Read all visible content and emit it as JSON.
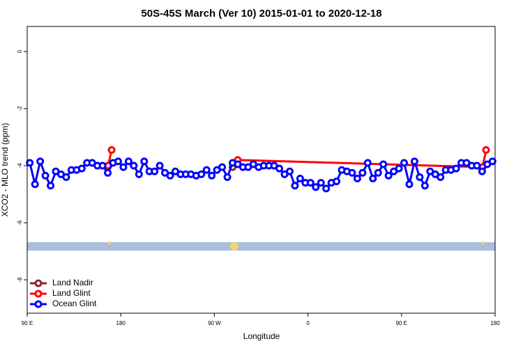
{
  "chart_data": {
    "type": "line",
    "title": "50S-45S March (Ver 10)   2015-01-01 to 2020-12-18",
    "xlabel": "Longitude",
    "ylabel": "XCO2 - MLO trend (ppm)",
    "xlim": [
      90,
      540
    ],
    "xticks": [
      {
        "value": 90,
        "label": "90 E"
      },
      {
        "value": 180,
        "label": "180"
      },
      {
        "value": 270,
        "label": "90 W"
      },
      {
        "value": 360,
        "label": "0"
      },
      {
        "value": 450,
        "label": "90 E"
      },
      {
        "value": 540,
        "label": "180"
      }
    ],
    "ylim": [
      -9.17,
      0.88
    ],
    "yticks": [
      0,
      -2,
      -4,
      -6,
      -8
    ],
    "legend": "bottom-left",
    "series": [
      {
        "name": "Land Nadir",
        "color": "#8b2323",
        "x": [
          287.5,
          292.5
        ],
        "values": [
          -4.05,
          -3.95
        ]
      },
      {
        "name": "Land Glint",
        "color": "#ff0000",
        "x": [
          167.8,
          171.2,
          287.9,
          292.5,
          528,
          531.3
        ],
        "values": [
          -4.0,
          -3.45,
          null,
          -3.8,
          -4.05,
          -3.45
        ]
      },
      {
        "name": "Ocean Glint",
        "color": "#0000ff",
        "x": [
          92.5,
          97.5,
          102.5,
          107.5,
          112.5,
          117.5,
          122.5,
          127.5,
          132.5,
          137.5,
          142.5,
          147.5,
          152.5,
          157.5,
          162.5,
          167.5,
          172.5,
          177.5,
          182.5,
          187.5,
          192.5,
          197.5,
          202.5,
          207.5,
          212.5,
          217.5,
          222.5,
          227.5,
          232.5,
          237.5,
          242.5,
          247.5,
          252.5,
          257.5,
          262.5,
          267.5,
          272.5,
          277.5,
          282.5,
          287.5,
          292.5,
          297.5,
          302.5,
          307.5,
          312.5,
          317.5,
          322.5,
          327.5,
          332.5,
          337.5,
          342.5,
          347.5,
          352.5,
          357.5,
          362.5,
          367.5,
          372.5,
          377.5,
          382.5,
          387.5,
          392.5,
          397.5,
          402.5,
          407.5,
          412.5,
          417.5,
          422.5,
          427.5,
          432.5,
          437.5,
          442.5,
          447.5,
          452.5,
          457.5,
          462.5,
          467.5,
          472.5,
          477.5,
          482.5,
          487.5,
          492.5,
          497.5,
          502.5,
          507.5,
          512.5,
          517.5,
          522.5,
          527.5,
          532.5,
          537.5
        ],
        "values": [
          -3.9,
          -4.65,
          -3.85,
          -4.35,
          -4.7,
          -4.2,
          -4.3,
          -4.4,
          -4.15,
          -4.15,
          -4.1,
          -3.9,
          -3.9,
          -4.0,
          -4.0,
          -4.25,
          -3.9,
          -3.85,
          -4.05,
          -3.85,
          -4.0,
          -4.3,
          -3.85,
          -4.2,
          -4.2,
          -4.0,
          -4.25,
          -4.35,
          -4.2,
          -4.3,
          -4.3,
          -4.3,
          -4.35,
          -4.3,
          -4.15,
          -4.35,
          -4.15,
          -4.05,
          -4.4,
          -3.9,
          -3.95,
          -4.05,
          -4.05,
          -3.95,
          -4.05,
          -4.0,
          -4.0,
          -4.0,
          -4.1,
          -4.3,
          -4.2,
          -4.7,
          -4.45,
          -4.6,
          -4.6,
          -4.75,
          -4.6,
          -4.8,
          -4.6,
          -4.55,
          -4.15,
          -4.2,
          -4.25,
          -4.45,
          -4.25,
          -3.9,
          -4.45,
          -4.25,
          -3.95,
          -4.35,
          -4.2,
          -4.1,
          -3.9,
          -4.65,
          -3.85,
          -4.4,
          -4.7,
          -4.2,
          -4.3,
          -4.4,
          -4.15,
          -4.15,
          -4.1,
          -3.9,
          -3.9,
          -4.0,
          -4.0,
          -4.2,
          -3.95,
          -3.85
        ]
      }
    ]
  }
}
